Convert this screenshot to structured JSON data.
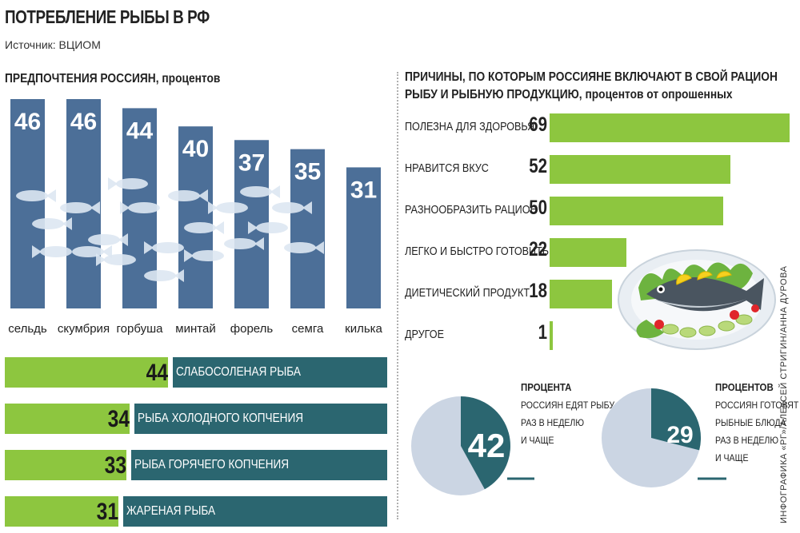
{
  "title": "ПОТРЕБЛЕНИЕ РЫБЫ В РФ",
  "source": "Источник: ВЦИОМ",
  "credit": "ИНФОГРАФИКА «РГ»/АЛЕКСЕЙ СТРИГИН/АННА ДУРОВА",
  "colors": {
    "bar_blue": "#4c6f98",
    "teal": "#2b6670",
    "green": "#8dc63f",
    "pie_light": "#cbd5e3"
  },
  "left_section": {
    "title": "ПРЕДПОЧТЕНИЯ РОССИЯН,",
    "subtitle": "процентов"
  },
  "right_section": {
    "title_line1": "ПРИЧИНЫ, ПО КОТОРЫМ РОССИЯНЕ ВКЛЮЧАЮТ В СВОЙ РАЦИОН",
    "title_line2": "РЫБУ И РЫБНУЮ ПРОДУКЦИЮ,",
    "subtitle": "процентов от опрошенных"
  },
  "preparation": [
    {
      "value": "44",
      "label": "СЛАБОСОЛЕНАЯ РЫБА"
    },
    {
      "value": "34",
      "label": "РЫБА ХОЛОДНОГО КОПЧЕНИЯ"
    },
    {
      "value": "33",
      "label": "РЫБА ГОРЯЧЕГО КОПЧЕНИЯ"
    },
    {
      "value": "31",
      "label": "ЖАРЕНАЯ РЫБА"
    }
  ],
  "pies": [
    {
      "value": "42",
      "head": "ПРОЦЕНТА",
      "lines": [
        "РОССИЯН ЕДЯТ РЫБУ",
        "РАЗ В НЕДЕЛЮ",
        "И ЧАЩЕ"
      ]
    },
    {
      "value": "29",
      "head": "ПРОЦЕНТОВ",
      "lines": [
        "РОССИЯН ГОТОВЯТ",
        "РЫБНЫЕ БЛЮДА",
        "РАЗ В НЕДЕЛЮ",
        "И ЧАЩЕ"
      ]
    }
  ],
  "chart_data": [
    {
      "type": "bar",
      "title": "ПРЕДПОЧТЕНИЯ РОССИЯН, процентов",
      "categories": [
        "сельдь",
        "скумбрия",
        "горбуша",
        "минтай",
        "форель",
        "семга",
        "килька"
      ],
      "values": [
        46,
        46,
        44,
        40,
        37,
        35,
        31
      ],
      "ylim": [
        0,
        46
      ]
    },
    {
      "type": "bar",
      "title": "ПРИЧИНЫ, ПО КОТОРЫМ РОССИЯНЕ ВКЛЮЧАЮТ В СВОЙ РАЦИОН РЫБУ И РЫБНУЮ ПРОДУКЦИЮ, процентов от опрошенных",
      "categories": [
        "ПОЛЕЗНА ДЛЯ ЗДОРОВЬЯ",
        "НРАВИТСЯ ВКУС",
        "РАЗНООБРАЗИТЬ РАЦИОН",
        "ЛЕГКО И БЫСТРО ГОТОВИТЬ",
        "ДИЕТИЧЕСКИЙ ПРОДУКТ",
        "ДРУГОЕ"
      ],
      "values": [
        69,
        52,
        50,
        22,
        18,
        1
      ],
      "xlim": [
        0,
        69
      ]
    },
    {
      "type": "bar",
      "categories": [
        "СЛАБОСОЛЕНАЯ РЫБА",
        "РЫБА ХОЛОДНОГО КОПЧЕНИЯ",
        "РЫБА ГОРЯЧЕГО КОПЧЕНИЯ",
        "ЖАРЕНАЯ РЫБА"
      ],
      "values": [
        44,
        34,
        33,
        31
      ]
    },
    {
      "type": "pie",
      "values": [
        42,
        58
      ]
    },
    {
      "type": "pie",
      "values": [
        29,
        71
      ]
    }
  ]
}
